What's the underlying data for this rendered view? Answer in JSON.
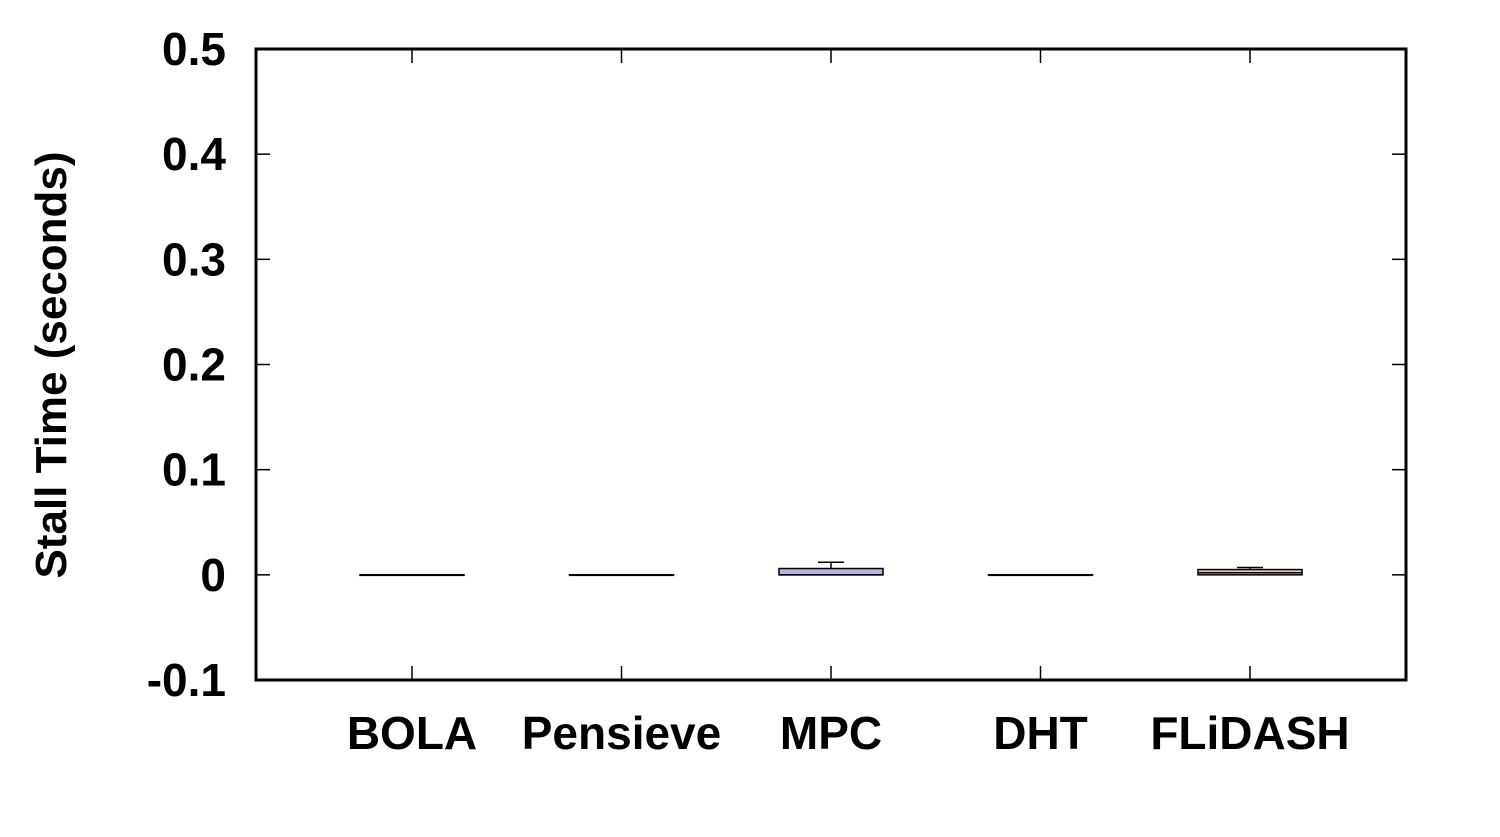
{
  "chart_data": {
    "type": "box",
    "title": "",
    "xlabel": "",
    "ylabel": "Stall Time (seconds)",
    "ylim": [
      -0.1,
      0.5
    ],
    "yticks": [
      -0.1,
      0,
      0.1,
      0.2,
      0.3,
      0.4,
      0.5
    ],
    "ytick_labels": [
      "-0.1",
      "0",
      "0.1",
      "0.2",
      "0.3",
      "0.4",
      "0.5"
    ],
    "categories": [
      "BOLA",
      "Pensieve",
      "MPC",
      "DHT",
      "FLiDASH"
    ],
    "boxes": [
      {
        "category": "BOLA",
        "whisker_low": 0,
        "q1": 0,
        "median": 0,
        "q3": 0,
        "whisker_high": 0,
        "fill": "#000000"
      },
      {
        "category": "Pensieve",
        "whisker_low": 0,
        "q1": 0,
        "median": 0,
        "q3": 0,
        "whisker_high": 0,
        "fill": "#000000"
      },
      {
        "category": "MPC",
        "whisker_low": 0,
        "q1": 0,
        "median": 0,
        "q3": 0.006,
        "whisker_high": 0.012,
        "fill": "#b3b3f0"
      },
      {
        "category": "DHT",
        "whisker_low": 0,
        "q1": 0,
        "median": 0,
        "q3": 0,
        "whisker_high": 0,
        "fill": "#000000"
      },
      {
        "category": "FLiDASH",
        "whisker_low": 0,
        "q1": 0,
        "median": 0.002,
        "q3": 0.005,
        "whisker_high": 0.007,
        "fill": "#f2c9b3"
      }
    ],
    "grid": false,
    "legend": "none"
  }
}
